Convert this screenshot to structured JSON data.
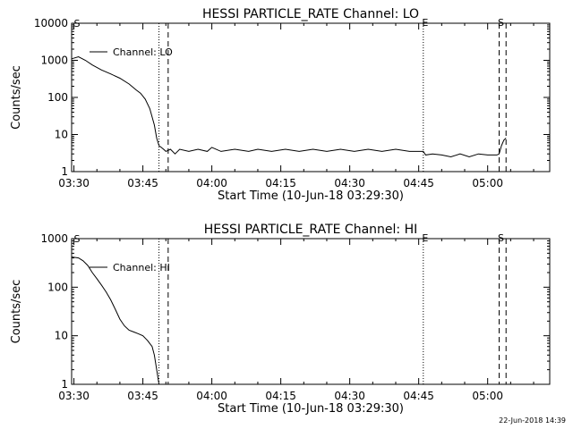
{
  "footer": {
    "stamp": "22-Jun-2018 14:39"
  },
  "chart_data": [
    {
      "type": "line",
      "title": "HESSI PARTICLE_RATE Channel: LO",
      "xlabel": "Start Time (10-Jun-18 03:29:30)",
      "ylabel": "Counts/sec",
      "yscale": "log",
      "ylim": [
        1,
        10000
      ],
      "xlim": [
        "03:29:30",
        "05:13:30"
      ],
      "x_ticks": [
        "03:30",
        "03:45",
        "04:00",
        "04:15",
        "04:30",
        "04:45",
        "05:00"
      ],
      "y_ticks": [
        "1",
        "10",
        "100",
        "1000",
        "10000"
      ],
      "legend": "Channel: LO",
      "grid": false,
      "markers": [
        {
          "time": "03:48:30",
          "style": "dotted",
          "label": ""
        },
        {
          "time": "03:50:30",
          "style": "dashed",
          "label": ""
        },
        {
          "time": "04:46:00",
          "style": "dotted",
          "label": "E"
        },
        {
          "time": "05:02:30",
          "style": "dashed",
          "label": "S"
        },
        {
          "time": "05:04:00",
          "style": "dashed",
          "label": ""
        }
      ],
      "edge_label": "S",
      "series": [
        {
          "name": "Channel: LO",
          "points": [
            [
              "03:29:30",
              1100
            ],
            [
              "03:31:00",
              1250
            ],
            [
              "03:32:30",
              1000
            ],
            [
              "03:34:00",
              750
            ],
            [
              "03:36:00",
              550
            ],
            [
              "03:38:00",
              430
            ],
            [
              "03:40:00",
              330
            ],
            [
              "03:42:00",
              230
            ],
            [
              "03:43:30",
              160
            ],
            [
              "03:44:30",
              130
            ],
            [
              "03:45:30",
              90
            ],
            [
              "03:46:30",
              50
            ],
            [
              "03:47:30",
              18
            ],
            [
              "03:48:00",
              8
            ],
            [
              "03:48:30",
              5
            ],
            [
              "03:49:00",
              4.5
            ],
            [
              "03:49:30",
              4
            ],
            [
              "03:50:00",
              3.5
            ],
            [
              "03:51:00",
              4
            ],
            [
              "03:52:00",
              3
            ],
            [
              "03:53:00",
              4
            ],
            [
              "03:55:00",
              3.5
            ],
            [
              "03:57:00",
              4
            ],
            [
              "03:59:00",
              3.5
            ],
            [
              "04:00:00",
              4.5
            ],
            [
              "04:02:00",
              3.5
            ],
            [
              "04:05:00",
              4
            ],
            [
              "04:08:00",
              3.5
            ],
            [
              "04:10:00",
              4
            ],
            [
              "04:13:00",
              3.5
            ],
            [
              "04:16:00",
              4
            ],
            [
              "04:19:00",
              3.5
            ],
            [
              "04:22:00",
              4
            ],
            [
              "04:25:00",
              3.5
            ],
            [
              "04:28:00",
              4
            ],
            [
              "04:31:00",
              3.5
            ],
            [
              "04:34:00",
              4
            ],
            [
              "04:37:00",
              3.5
            ],
            [
              "04:40:00",
              4
            ],
            [
              "04:43:00",
              3.5
            ],
            [
              "04:46:00",
              3.5
            ],
            [
              "04:46:30",
              2.8
            ],
            [
              "04:48:00",
              3
            ],
            [
              "04:50:00",
              2.8
            ],
            [
              "04:52:00",
              2.5
            ],
            [
              "04:54:00",
              3
            ],
            [
              "04:56:00",
              2.5
            ],
            [
              "04:58:00",
              3
            ],
            [
              "05:00:00",
              2.8
            ],
            [
              "05:02:00",
              2.8
            ],
            [
              "05:02:30",
              3
            ],
            [
              "05:03:00",
              5
            ],
            [
              "05:03:30",
              7
            ],
            [
              "05:04:00",
              8
            ]
          ]
        }
      ]
    },
    {
      "type": "line",
      "title": "HESSI PARTICLE_RATE Channel: HI",
      "xlabel": "Start Time (10-Jun-18 03:29:30)",
      "ylabel": "Counts/sec",
      "yscale": "log",
      "ylim": [
        1,
        1000
      ],
      "xlim": [
        "03:29:30",
        "05:13:30"
      ],
      "x_ticks": [
        "03:30",
        "03:45",
        "04:00",
        "04:15",
        "04:30",
        "04:45",
        "05:00"
      ],
      "y_ticks": [
        "1",
        "10",
        "100",
        "1000"
      ],
      "legend": "Channel: HI",
      "grid": false,
      "markers": [
        {
          "time": "03:48:30",
          "style": "dotted",
          "label": ""
        },
        {
          "time": "03:50:30",
          "style": "dashed",
          "label": ""
        },
        {
          "time": "04:46:00",
          "style": "dotted",
          "label": "E"
        },
        {
          "time": "05:02:30",
          "style": "dashed",
          "label": "S"
        },
        {
          "time": "05:04:00",
          "style": "dashed",
          "label": ""
        }
      ],
      "edge_label": "S",
      "series": [
        {
          "name": "Channel: HI",
          "points": [
            [
              "03:29:30",
              420
            ],
            [
              "03:31:00",
              400
            ],
            [
              "03:32:00",
              350
            ],
            [
              "03:33:00",
              280
            ],
            [
              "03:34:00",
              200
            ],
            [
              "03:35:00",
              150
            ],
            [
              "03:36:00",
              110
            ],
            [
              "03:37:00",
              80
            ],
            [
              "03:38:00",
              55
            ],
            [
              "03:39:00",
              35
            ],
            [
              "03:40:00",
              22
            ],
            [
              "03:41:00",
              16
            ],
            [
              "03:42:00",
              13
            ],
            [
              "03:43:00",
              12
            ],
            [
              "03:44:00",
              11
            ],
            [
              "03:45:00",
              10
            ],
            [
              "03:46:00",
              8
            ],
            [
              "03:47:00",
              6
            ],
            [
              "03:47:30",
              4
            ],
            [
              "03:48:00",
              2
            ],
            [
              "03:48:30",
              1
            ]
          ]
        }
      ]
    }
  ]
}
